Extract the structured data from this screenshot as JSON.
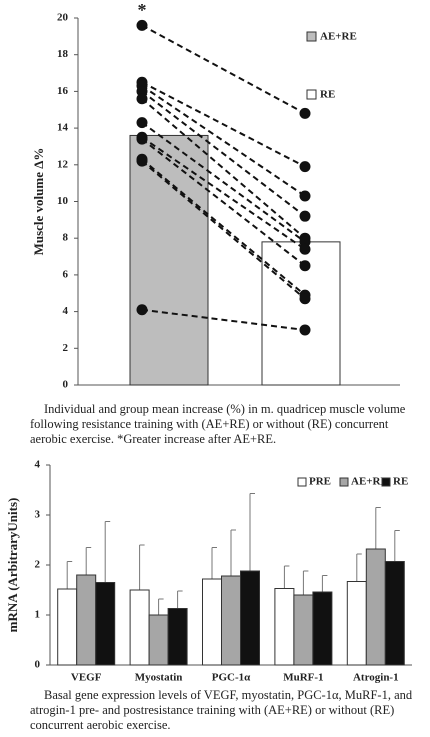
{
  "chart_data": [
    {
      "type": "paired-bar",
      "annotation": "*",
      "ylabel": "Muscle volume Δ%",
      "series": [
        {
          "name": "AE+RE",
          "color": "#bdbdbd",
          "values": [
            13.6
          ]
        },
        {
          "name": "RE",
          "color": "#ffffff",
          "values": [
            7.8
          ]
        }
      ],
      "individual": [
        [
          19.6,
          14.8
        ],
        [
          16.5,
          11.9
        ],
        [
          16.3,
          10.3
        ],
        [
          16.0,
          9.2
        ],
        [
          15.6,
          8.0
        ],
        [
          14.3,
          7.8
        ],
        [
          13.5,
          7.4
        ],
        [
          13.4,
          6.5
        ],
        [
          12.3,
          4.9
        ],
        [
          12.2,
          4.7
        ],
        [
          4.1,
          3.0
        ]
      ],
      "ylim": [
        0,
        20
      ],
      "yticks": [
        0,
        2,
        4,
        6,
        8,
        10,
        12,
        14,
        16,
        18,
        20
      ],
      "caption": "Individual and group mean increase (%) in m. quadricep muscle volume following resistance training with (AE+RE) or without (RE) concurrent aerobic exercise. *Greater increase after AE+RE."
    },
    {
      "type": "grouped-bar",
      "ylabel": "mRNA (ArbitraryUnits)",
      "categories": [
        "VEGF",
        "Myostatin",
        "PGC-1α",
        "MuRF-1",
        "Atrogin-1"
      ],
      "series": [
        {
          "name": "PRE",
          "color": "#ffffff",
          "values": [
            1.52,
            1.5,
            1.72,
            1.53,
            1.67
          ],
          "errors": [
            0.55,
            0.9,
            0.63,
            0.45,
            0.55
          ]
        },
        {
          "name": "AE+RE",
          "color": "#a6a6a6",
          "values": [
            1.8,
            1.0,
            1.78,
            1.4,
            2.32
          ],
          "errors": [
            0.55,
            0.32,
            0.92,
            0.48,
            0.83
          ]
        },
        {
          "name": "RE",
          "color": "#111111",
          "values": [
            1.65,
            1.13,
            1.88,
            1.46,
            2.07
          ],
          "errors": [
            1.22,
            0.35,
            1.55,
            0.33,
            0.62
          ]
        }
      ],
      "ylim": [
        0,
        4
      ],
      "yticks": [
        0,
        1,
        2,
        3,
        4
      ],
      "caption": "Basal gene expression levels of VEGF, myostatin, PGC-1α, MuRF-1, and atrogin-1 pre- and postresistance training with (AE+RE) or without (RE) concurrent aerobic exercise."
    }
  ]
}
